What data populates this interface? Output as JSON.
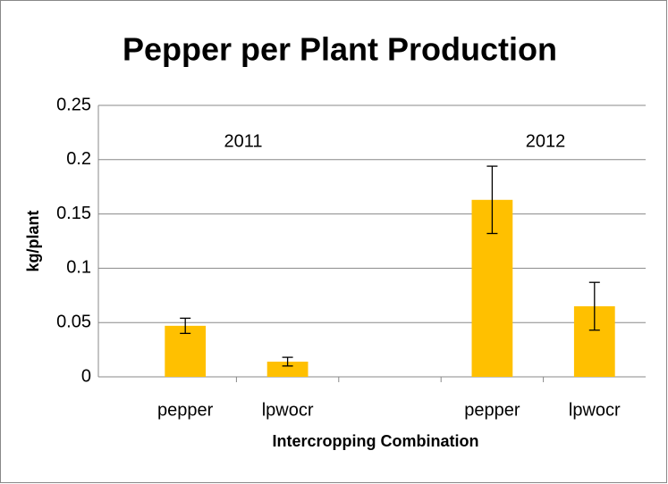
{
  "chart_data": {
    "type": "bar",
    "title": "Pepper per Plant Production",
    "x_label": "Intercropping Combination",
    "y_label": "kg/plant",
    "categories": [
      "pepper",
      "lpwocr",
      null,
      "pepper",
      "lpwocr"
    ],
    "values": [
      0.047,
      0.014,
      null,
      0.163,
      0.065
    ],
    "errors": [
      0.007,
      0.004,
      null,
      0.031,
      0.022
    ],
    "color": "#ffc000",
    "annotations": [
      {
        "text": "2011"
      },
      {
        "text": "2012"
      }
    ],
    "ylim": [
      0,
      0.25
    ],
    "yticks": [
      0,
      0.05,
      0.1,
      0.15,
      0.2,
      0.25
    ],
    "grid": true
  }
}
